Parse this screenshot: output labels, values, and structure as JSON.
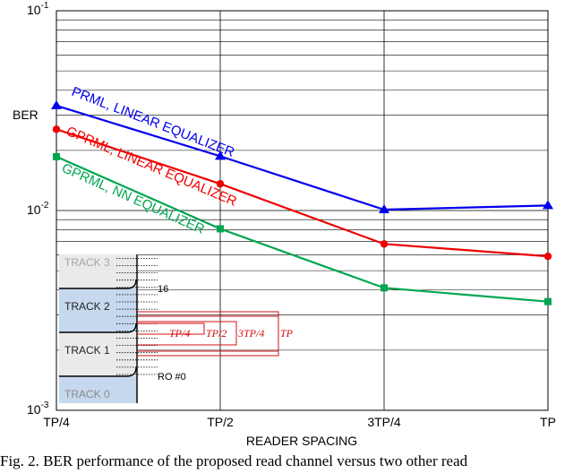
{
  "chart_data": {
    "type": "line",
    "x": [
      "TP/4",
      "TP/2",
      "3TP/4",
      "TP"
    ],
    "xlabel": "READER SPACING",
    "ylabel": "BER",
    "yscale": "log",
    "ylim": [
      0.001,
      0.1
    ],
    "ytick_labels": [
      {
        "base": "10",
        "exp": "-1",
        "value": 0.1
      },
      {
        "base": "10",
        "exp": "-2",
        "value": 0.01
      },
      {
        "base": "10",
        "exp": "-3",
        "value": 0.001
      }
    ],
    "grid": true,
    "series": [
      {
        "name": "PRML, LINEAR EQUALIZER",
        "color": "#0000ee",
        "marker": "triangle",
        "values": [
          0.0335,
          0.0187,
          0.0101,
          0.0106
        ]
      },
      {
        "name": "GPRML, LINEAR EQUALIZER",
        "color": "#ee0000",
        "marker": "circle",
        "values": [
          0.0255,
          0.0136,
          0.0068,
          0.0059
        ]
      },
      {
        "name": "GPRML, NN EQUALIZER",
        "color": "#00a650",
        "marker": "square",
        "values": [
          0.0186,
          0.0081,
          0.0041,
          0.0035
        ]
      }
    ],
    "inset": {
      "tracks": [
        "TRACK 3",
        "TRACK 2",
        "TRACK 1",
        "TRACK 0"
      ],
      "spacing_labels": [
        "TP/4",
        "TP/2",
        "3TP/4",
        "TP"
      ],
      "readout_labels": [
        "16",
        "RO #0"
      ]
    }
  },
  "caption": "Fig. 2.  BER performance of the proposed read channel versus two other read"
}
